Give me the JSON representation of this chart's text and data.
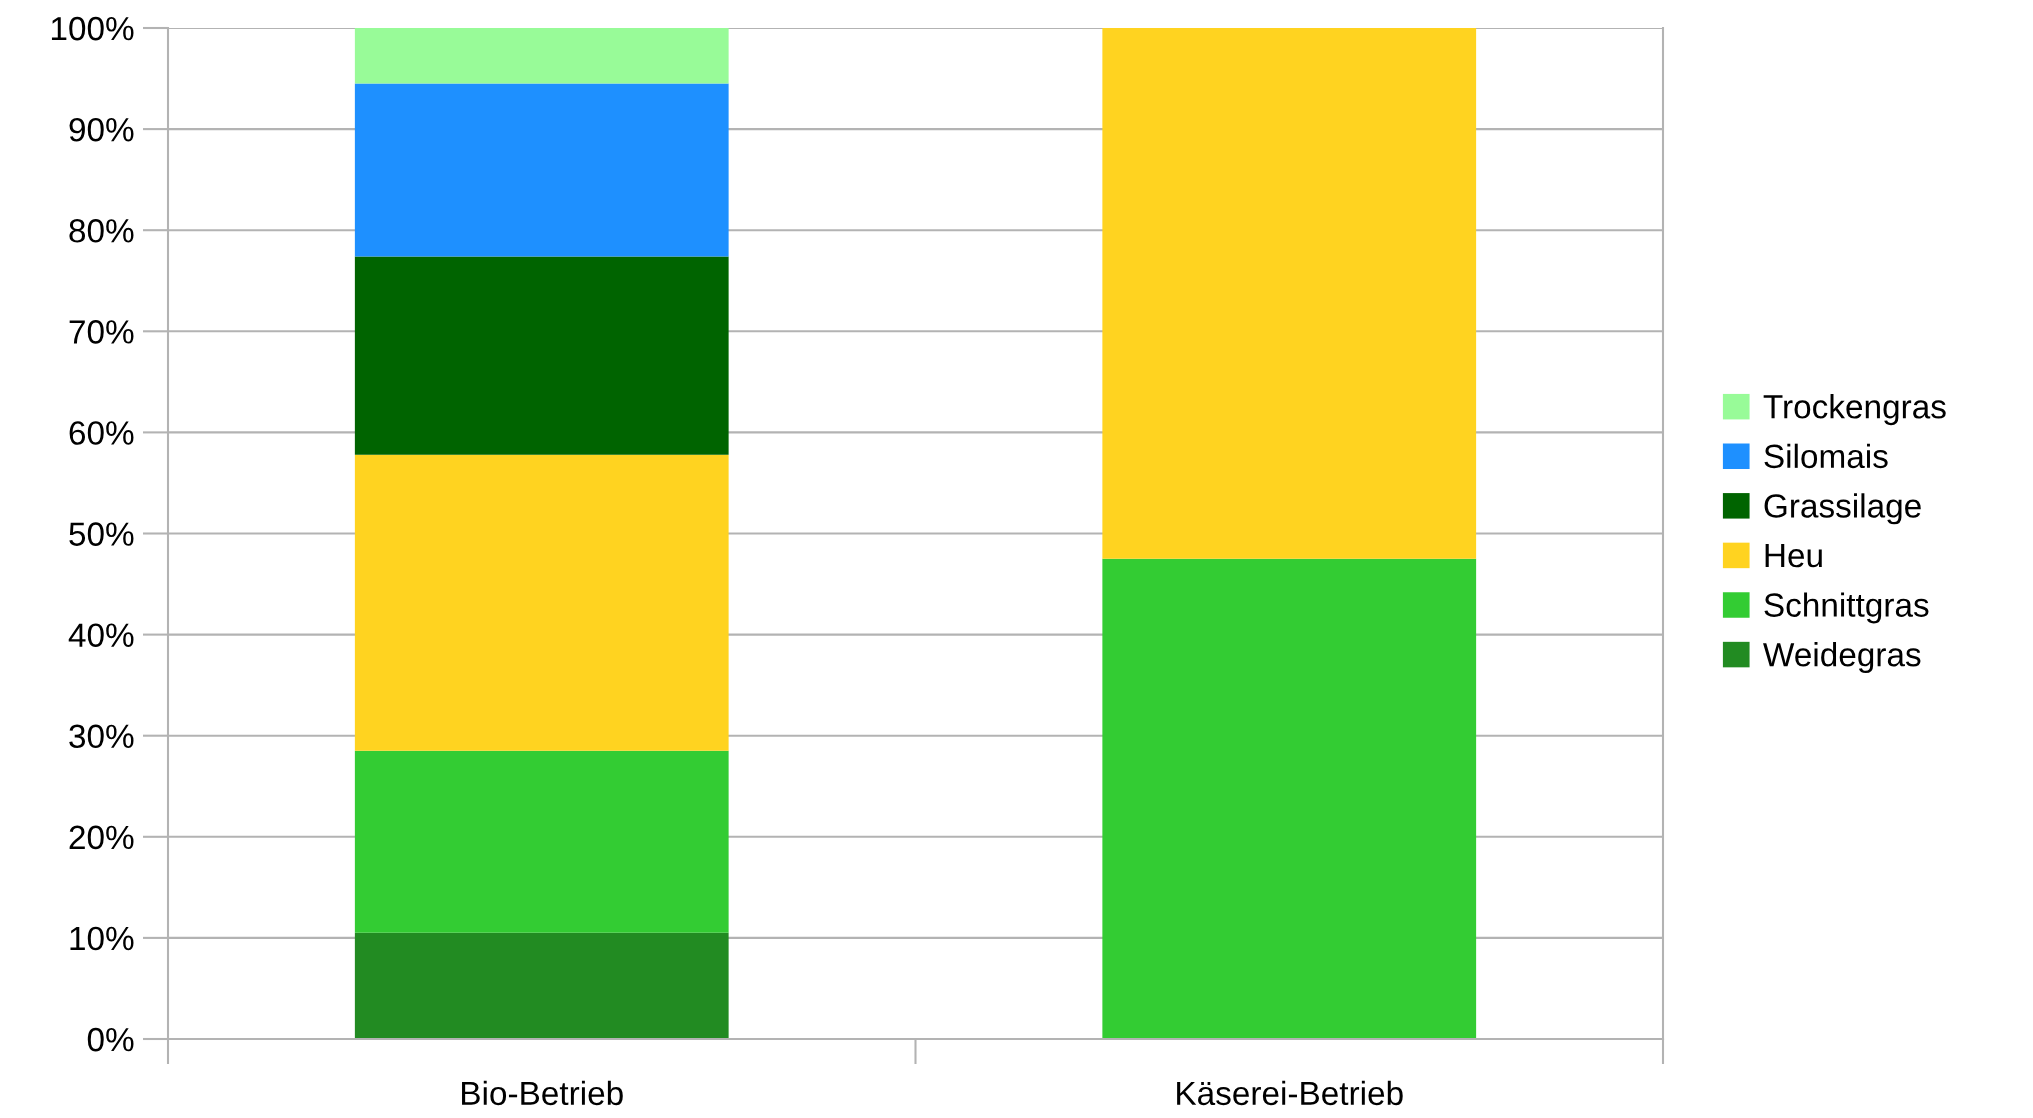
{
  "chart_data": {
    "type": "bar",
    "stacked": true,
    "categories": [
      "Bio-Betrieb",
      "Käserei-Betrieb"
    ],
    "series": [
      {
        "name": "Weidegras",
        "color": "#228b22",
        "values": [
          10.5,
          null
        ]
      },
      {
        "name": "Schnittgras",
        "color": "#33cc33",
        "values": [
          18.0,
          47.5
        ]
      },
      {
        "name": "Heu",
        "color": "#ffd320",
        "values": [
          29.3,
          52.5
        ]
      },
      {
        "name": "Grassilage",
        "color": "#006400",
        "values": [
          19.6,
          null
        ]
      },
      {
        "name": "Silomais",
        "color": "#1e90ff",
        "values": [
          17.1,
          null
        ]
      },
      {
        "name": "Trockengras",
        "color": "#98fb98",
        "values": [
          5.5,
          null
        ]
      }
    ],
    "ylim": [
      0,
      100
    ],
    "yticks": [
      {
        "value": 0,
        "label": "0%"
      },
      {
        "value": 10,
        "label": "10%"
      },
      {
        "value": 20,
        "label": "20%"
      },
      {
        "value": 30,
        "label": "30%"
      },
      {
        "value": 40,
        "label": "40%"
      },
      {
        "value": 50,
        "label": "50%"
      },
      {
        "value": 60,
        "label": "60%"
      },
      {
        "value": 70,
        "label": "70%"
      },
      {
        "value": 80,
        "label": "80%"
      },
      {
        "value": 90,
        "label": "90%"
      },
      {
        "value": 100,
        "label": "100%"
      }
    ],
    "grid": "y",
    "legend": "right"
  }
}
